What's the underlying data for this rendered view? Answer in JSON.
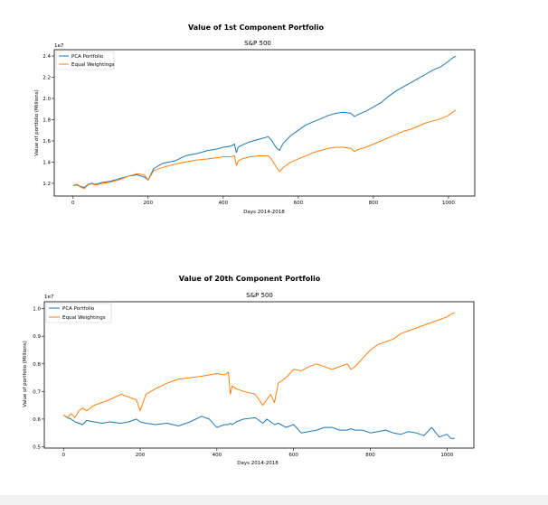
{
  "colors": {
    "pca": "#1f77b4",
    "equal": "#ff7f0e"
  },
  "chart_data": [
    {
      "type": "line",
      "suptitle": "Value of 1st Component Portfolio",
      "title": "S&P 500",
      "xlabel": "Days 2014-2018",
      "ylabel": "Value of portfolio (Millions)",
      "offset_text": "1e7",
      "xlim": [
        -50,
        1070
      ],
      "ylim": [
        10800000,
        24600000
      ],
      "xticks": [
        0,
        200,
        400,
        600,
        800,
        1000
      ],
      "yticks": [
        12000000,
        14000000,
        16000000,
        18000000,
        20000000,
        22000000,
        24000000
      ],
      "ytick_labels": [
        "1.2",
        "1.4",
        "1.6",
        "1.8",
        "2.0",
        "2.2",
        "2.4"
      ],
      "legend": "upper left",
      "series": [
        {
          "name": "PCA Portfolio",
          "color": "#1f77b4",
          "x": [
            0,
            10,
            20,
            30,
            40,
            50,
            60,
            80,
            100,
            120,
            150,
            170,
            190,
            200,
            215,
            240,
            270,
            300,
            330,
            360,
            380,
            400,
            420,
            430,
            435,
            440,
            450,
            470,
            500,
            520,
            530,
            540,
            550,
            560,
            580,
            600,
            620,
            640,
            660,
            680,
            700,
            720,
            740,
            750,
            760,
            780,
            800,
            820,
            840,
            860,
            880,
            900,
            920,
            940,
            960,
            980,
            1000,
            1010,
            1020
          ],
          "y": [
            11800000,
            11900000,
            11700000,
            11600000,
            11900000,
            12000000,
            11900000,
            12100000,
            12200000,
            12400000,
            12700000,
            12800000,
            12600000,
            12300000,
            13400000,
            13900000,
            14100000,
            14600000,
            14800000,
            15100000,
            15200000,
            15400000,
            15500000,
            15700000,
            14900000,
            15400000,
            15600000,
            15900000,
            16200000,
            16400000,
            16000000,
            15400000,
            15100000,
            15800000,
            16500000,
            17000000,
            17500000,
            17800000,
            18100000,
            18400000,
            18600000,
            18700000,
            18600000,
            18300000,
            18500000,
            18800000,
            19200000,
            19600000,
            20200000,
            20700000,
            21100000,
            21500000,
            21900000,
            22300000,
            22700000,
            23000000,
            23500000,
            23800000,
            24000000
          ]
        },
        {
          "name": "Equal Weightings",
          "color": "#ff7f0e",
          "x": [
            0,
            10,
            20,
            30,
            40,
            50,
            60,
            80,
            100,
            120,
            150,
            170,
            190,
            200,
            215,
            240,
            270,
            300,
            330,
            360,
            380,
            400,
            420,
            430,
            435,
            440,
            450,
            470,
            500,
            520,
            530,
            540,
            550,
            560,
            580,
            600,
            620,
            640,
            660,
            680,
            700,
            720,
            740,
            750,
            760,
            780,
            800,
            820,
            840,
            860,
            880,
            900,
            920,
            940,
            960,
            980,
            1000,
            1010,
            1020
          ],
          "y": [
            11750000,
            11850000,
            11650000,
            11500000,
            11850000,
            11950000,
            11850000,
            12000000,
            12100000,
            12300000,
            12700000,
            12900000,
            12800000,
            12300000,
            13200000,
            13500000,
            13800000,
            14000000,
            14200000,
            14300000,
            14400000,
            14500000,
            14500000,
            14600000,
            13700000,
            14100000,
            14300000,
            14500000,
            14600000,
            14600000,
            14200000,
            13600000,
            13100000,
            13500000,
            14000000,
            14300000,
            14600000,
            14900000,
            15100000,
            15300000,
            15400000,
            15400000,
            15300000,
            15000000,
            15200000,
            15400000,
            15700000,
            16000000,
            16300000,
            16600000,
            16900000,
            17100000,
            17400000,
            17700000,
            17900000,
            18100000,
            18400000,
            18700000,
            18900000
          ]
        }
      ]
    },
    {
      "type": "line",
      "suptitle": "Value of 20th Component Portfolio",
      "title": "S&P 500",
      "xlabel": "Days 2014-2018",
      "ylabel": "Value of portfolio (Millions)",
      "offset_text": "1e7",
      "xlim": [
        -50,
        1070
      ],
      "ylim": [
        4950000,
        10250000
      ],
      "xticks": [
        0,
        200,
        400,
        600,
        800,
        1000
      ],
      "yticks": [
        5000000,
        6000000,
        7000000,
        8000000,
        9000000,
        10000000
      ],
      "ytick_labels": [
        "0.5",
        "0.6",
        "0.7",
        "0.8",
        "0.9",
        "1.0"
      ],
      "legend": "upper left",
      "series": [
        {
          "name": "PCA Portfolio",
          "color": "#1f77b4",
          "x": [
            0,
            10,
            20,
            30,
            40,
            50,
            60,
            80,
            100,
            120,
            150,
            170,
            190,
            200,
            215,
            240,
            270,
            300,
            330,
            360,
            380,
            400,
            420,
            430,
            435,
            440,
            450,
            470,
            500,
            520,
            530,
            540,
            550,
            560,
            580,
            600,
            620,
            640,
            660,
            680,
            700,
            720,
            740,
            750,
            760,
            780,
            800,
            820,
            840,
            860,
            880,
            900,
            920,
            940,
            960,
            980,
            1000,
            1010,
            1020
          ],
          "y": [
            6150000,
            6050000,
            6000000,
            5900000,
            5850000,
            5800000,
            5950000,
            5900000,
            5850000,
            5900000,
            5850000,
            5900000,
            6000000,
            5900000,
            5850000,
            5800000,
            5850000,
            5750000,
            5900000,
            6100000,
            6000000,
            5700000,
            5800000,
            5800000,
            5850000,
            5800000,
            5900000,
            6000000,
            6050000,
            5850000,
            6000000,
            5900000,
            5800000,
            5850000,
            5700000,
            5800000,
            5500000,
            5550000,
            5600000,
            5700000,
            5700000,
            5600000,
            5600000,
            5650000,
            5600000,
            5600000,
            5500000,
            5550000,
            5600000,
            5500000,
            5450000,
            5550000,
            5500000,
            5400000,
            5700000,
            5350000,
            5450000,
            5300000,
            5300000
          ]
        },
        {
          "name": "Equal Weightings",
          "color": "#ff7f0e",
          "x": [
            0,
            10,
            20,
            30,
            40,
            50,
            60,
            80,
            100,
            120,
            150,
            170,
            190,
            200,
            215,
            240,
            270,
            300,
            330,
            360,
            380,
            400,
            420,
            430,
            435,
            440,
            450,
            470,
            500,
            520,
            530,
            540,
            550,
            560,
            580,
            600,
            620,
            640,
            660,
            680,
            700,
            720,
            740,
            750,
            760,
            780,
            800,
            820,
            840,
            860,
            880,
            900,
            920,
            940,
            960,
            980,
            1000,
            1010,
            1020
          ],
          "y": [
            6150000,
            6050000,
            6200000,
            6050000,
            6300000,
            6400000,
            6300000,
            6500000,
            6600000,
            6700000,
            6900000,
            6800000,
            6700000,
            6300000,
            6900000,
            7100000,
            7300000,
            7450000,
            7500000,
            7550000,
            7600000,
            7650000,
            7600000,
            7700000,
            6900000,
            7200000,
            7100000,
            7000000,
            6900000,
            6500000,
            6700000,
            6900000,
            6600000,
            7300000,
            7500000,
            7800000,
            7750000,
            7900000,
            8000000,
            7900000,
            7800000,
            7900000,
            8000000,
            7800000,
            7900000,
            8200000,
            8500000,
            8700000,
            8800000,
            8900000,
            9100000,
            9200000,
            9300000,
            9400000,
            9500000,
            9600000,
            9700000,
            9800000,
            9850000
          ]
        }
      ]
    }
  ]
}
